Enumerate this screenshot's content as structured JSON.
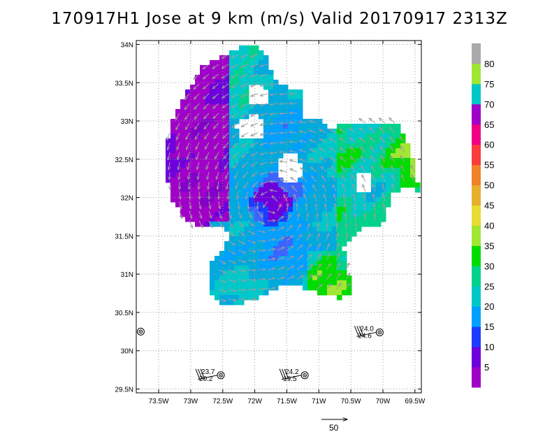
{
  "title": "170917H1 Jose at 9 km (m/s) Valid 20170917 2313Z",
  "chart_data": {
    "type": "heatmap",
    "title": "170917H1 Jose at 9 km (m/s) Valid 20170917 2313Z",
    "x_ticks": [
      {
        "lon": -73.5,
        "label": "73.5W"
      },
      {
        "lon": -73.0,
        "label": "73W"
      },
      {
        "lon": -72.5,
        "label": "72.5W"
      },
      {
        "lon": -72.0,
        "label": "72W"
      },
      {
        "lon": -71.5,
        "label": "71.5W"
      },
      {
        "lon": -71.0,
        "label": "71W"
      },
      {
        "lon": -70.5,
        "label": "70.5W"
      },
      {
        "lon": -70.0,
        "label": "70W"
      },
      {
        "lon": -69.5,
        "label": "69.5W"
      }
    ],
    "y_ticks": [
      {
        "lat": 29.5,
        "label": "29.5N"
      },
      {
        "lat": 30.0,
        "label": "30N"
      },
      {
        "lat": 30.5,
        "label": "30.5N"
      },
      {
        "lat": 31.0,
        "label": "31N"
      },
      {
        "lat": 31.5,
        "label": "31.5N"
      },
      {
        "lat": 32.0,
        "label": "32N"
      },
      {
        "lat": 32.5,
        "label": "32.5N"
      },
      {
        "lat": 33.0,
        "label": "33N"
      },
      {
        "lat": 33.5,
        "label": "33.5N"
      },
      {
        "lat": 34.0,
        "label": "34N"
      }
    ],
    "xlim": [
      -73.85,
      -69.4
    ],
    "ylim": [
      29.45,
      34.05
    ],
    "grid": true,
    "colorbar": {
      "labels": [
        "5",
        "10",
        "15",
        "20",
        "25",
        "30",
        "35",
        "40",
        "45",
        "50",
        "55",
        "60",
        "65",
        "70",
        "75",
        "80"
      ],
      "colors": [
        "#a000c8",
        "#6e00dc",
        "#1e3cff",
        "#00a0ff",
        "#00c8c8",
        "#00d28c",
        "#00dc00",
        "#a0e632",
        "#e6dc32",
        "#e6af2d",
        "#f08228",
        "#fa3c3c",
        "#f00082",
        "#a000c8",
        "#00c8c8",
        "#a0e632",
        "#aaaaaa"
      ]
    },
    "storm_center": {
      "lon": -71.75,
      "lat": 31.9
    },
    "observations": [
      {
        "lon": -73.78,
        "lat": 30.25,
        "labels": []
      },
      {
        "lon": -72.53,
        "lat": 29.68,
        "labels": [
          "23.7",
          "20.2"
        ]
      },
      {
        "lon": -71.22,
        "lat": 29.68,
        "labels": [
          "24.2",
          "19.5"
        ]
      },
      {
        "lon": -70.05,
        "lat": 30.24,
        "labels": [
          "24.0",
          "24.6"
        ]
      }
    ],
    "vector_scale": {
      "label": "50",
      "value": 50
    }
  }
}
